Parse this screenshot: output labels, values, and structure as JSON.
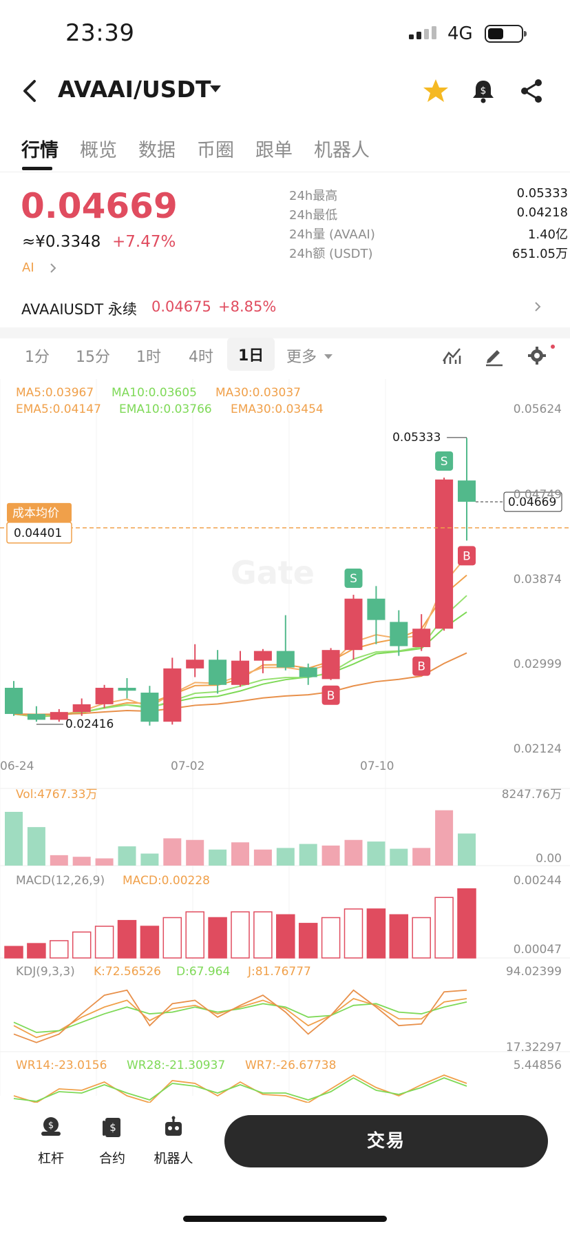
{
  "status_bar": {
    "time": "23:39",
    "network": "4G"
  },
  "header": {
    "pair": "AVAAI/USDT"
  },
  "tabs": [
    "行情",
    "概览",
    "数据",
    "币圈",
    "跟单",
    "机器人"
  ],
  "ticker": {
    "last_price": "0.04669",
    "cny": "≈¥0.3348",
    "change": "+7.47%",
    "ai": "AI",
    "stats": [
      {
        "label": "24h最高",
        "value": "0.05333"
      },
      {
        "label": "24h最低",
        "value": "0.04218"
      },
      {
        "label": "24h量 (AVAAI)",
        "value": "1.40亿"
      },
      {
        "label": "24h额 (USDT)",
        "value": "651.05万"
      }
    ]
  },
  "perp": {
    "name": "AVAAIUSDT 永续",
    "price": "0.04675",
    "change": "+8.85%"
  },
  "intervals": [
    "1分",
    "15分",
    "1时",
    "4时",
    "1日",
    "更多"
  ],
  "active_interval": "1日",
  "indicators": {
    "ma5": "MA5:0.03967",
    "ma10": "MA10:0.03605",
    "ma30": "MA30:0.03037",
    "ema5": "EMA5:0.04147",
    "ema10": "EMA10:0.03766",
    "ema30": "EMA30:0.03454",
    "vol": "Vol:4767.33万",
    "macd_params": "MACD(12,26,9)",
    "macd": "MACD:0.00228",
    "kdj_params": "KDJ(9,3,3)",
    "k": "K:72.56526",
    "d": "D:67.964",
    "j": "J:81.76777",
    "wr14": "WR14:-23.0156",
    "wr28": "WR28:-21.30937",
    "wr7": "WR7:-26.67738"
  },
  "axes": {
    "price_ticks": [
      "0.05624",
      "0.04749",
      "0.03874",
      "0.02999",
      "0.02124"
    ],
    "dates": [
      "06-24",
      "07-02",
      "07-10"
    ],
    "vol_ticks": [
      "8247.76万",
      "0.00"
    ],
    "macd_ticks": [
      "0.00244",
      "0.00047"
    ],
    "kdj_ticks": [
      "94.02399",
      "17.32297"
    ],
    "wr_ticks": [
      "5.44856"
    ]
  },
  "annotations": {
    "high": "0.05333",
    "low": "0.02416",
    "current_tag": "0.04669",
    "cost_label": "成本均价",
    "cost_value": "0.04401",
    "signal_s": "S",
    "signal_b": "B",
    "watermark": "Gate"
  },
  "colors": {
    "up": "#e04c5f",
    "down": "#52b98b",
    "orange": "#f0a04a",
    "green": "#7ed957"
  },
  "chart_data": {
    "type": "candlestick",
    "x_range": [
      "06-24",
      "07-13"
    ],
    "ylim": [
      0.02124,
      0.05624
    ],
    "candles": [
      {
        "o": 0.0275,
        "h": 0.0282,
        "l": 0.0246,
        "c": 0.0248
      },
      {
        "o": 0.0248,
        "h": 0.0256,
        "l": 0.024,
        "c": 0.0242
      },
      {
        "o": 0.0242,
        "h": 0.0253,
        "l": 0.024,
        "c": 0.025
      },
      {
        "o": 0.025,
        "h": 0.0264,
        "l": 0.0246,
        "c": 0.0258
      },
      {
        "o": 0.0258,
        "h": 0.0278,
        "l": 0.0254,
        "c": 0.0275
      },
      {
        "o": 0.0275,
        "h": 0.0285,
        "l": 0.0264,
        "c": 0.0272
      },
      {
        "o": 0.027,
        "h": 0.0277,
        "l": 0.0236,
        "c": 0.024
      },
      {
        "o": 0.024,
        "h": 0.0306,
        "l": 0.0237,
        "c": 0.0295
      },
      {
        "o": 0.0295,
        "h": 0.032,
        "l": 0.0286,
        "c": 0.0304
      },
      {
        "o": 0.0304,
        "h": 0.0314,
        "l": 0.0269,
        "c": 0.0278
      },
      {
        "o": 0.0278,
        "h": 0.0313,
        "l": 0.0276,
        "c": 0.0303
      },
      {
        "o": 0.0303,
        "h": 0.0315,
        "l": 0.029,
        "c": 0.0313
      },
      {
        "o": 0.0313,
        "h": 0.035,
        "l": 0.0293,
        "c": 0.0296
      },
      {
        "o": 0.0296,
        "h": 0.03,
        "l": 0.0278,
        "c": 0.0286
      },
      {
        "o": 0.0284,
        "h": 0.0316,
        "l": 0.0283,
        "c": 0.0314
      },
      {
        "o": 0.0314,
        "h": 0.0371,
        "l": 0.0304,
        "c": 0.0367
      },
      {
        "o": 0.0367,
        "h": 0.038,
        "l": 0.032,
        "c": 0.0345
      },
      {
        "o": 0.0343,
        "h": 0.0355,
        "l": 0.0308,
        "c": 0.0318
      },
      {
        "o": 0.0317,
        "h": 0.0351,
        "l": 0.0313,
        "c": 0.0336
      },
      {
        "o": 0.0336,
        "h": 0.0492,
        "l": 0.0334,
        "c": 0.049
      },
      {
        "o": 0.0489,
        "h": 0.0533,
        "l": 0.0427,
        "c": 0.0467
      }
    ],
    "volume": [
      67,
      48,
      13,
      11,
      9,
      24,
      15,
      34,
      32,
      20,
      29,
      20,
      22,
      27,
      25,
      32,
      30,
      21,
      22,
      69,
      40
    ],
    "volume_max": 82.4776,
    "macd_hist": [
      0.0004,
      0.0005,
      0.0006,
      0.0009,
      0.0011,
      0.0013,
      0.0011,
      0.0014,
      0.0016,
      0.0014,
      0.0016,
      0.0016,
      0.0015,
      0.0012,
      0.0014,
      0.0017,
      0.0017,
      0.0015,
      0.0014,
      0.0021,
      0.0024
    ],
    "kdj": {
      "k": [
        40,
        26,
        34,
        50,
        62,
        70,
        46,
        60,
        64,
        54,
        62,
        70,
        60,
        40,
        52,
        72,
        64,
        48,
        48,
        68,
        72
      ],
      "d": [
        44,
        32,
        34,
        44,
        54,
        62,
        54,
        56,
        62,
        56,
        60,
        66,
        62,
        50,
        52,
        64,
        66,
        56,
        54,
        62,
        68
      ],
      "j": [
        30,
        20,
        30,
        54,
        76,
        82,
        40,
        66,
        70,
        50,
        64,
        76,
        56,
        30,
        52,
        82,
        62,
        40,
        42,
        80,
        82
      ]
    },
    "kdj_range": [
      17.32297,
      94.02399
    ]
  }
}
